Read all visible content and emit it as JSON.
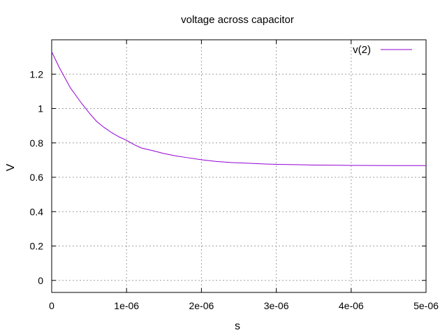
{
  "chart_data": {
    "type": "line",
    "title": "voltage across capacitor",
    "xlabel": "s",
    "ylabel": "V",
    "xlim": [
      0,
      5e-06
    ],
    "ylim": [
      -0.07,
      1.4
    ],
    "grid": true,
    "legend_position": "top-right",
    "x_ticks": [
      0,
      1e-06,
      2e-06,
      3e-06,
      4e-06,
      5e-06
    ],
    "x_tick_labels": [
      "0",
      "1e-06",
      "2e-06",
      "3e-06",
      "4e-06",
      "5e-06"
    ],
    "y_ticks": [
      0,
      0.2,
      0.4,
      0.6,
      0.8,
      1.0,
      1.2
    ],
    "y_tick_labels": [
      "0",
      "0.2",
      "0.4",
      "0.6",
      "0.8",
      "1",
      "1.2"
    ],
    "series": [
      {
        "name": "v(2)",
        "color": "#9400d3",
        "x": [
          0,
          1e-07,
          2e-07,
          2.5e-07,
          4e-07,
          5e-07,
          6e-07,
          7e-07,
          8e-07,
          9e-07,
          1e-06,
          1.1e-06,
          1.2e-06,
          1.35e-06,
          1.5e-06,
          1.65e-06,
          1.8e-06,
          2e-06,
          2.2e-06,
          2.4e-06,
          2.6e-06,
          2.8e-06,
          3e-06,
          3.3e-06,
          3.5e-06,
          3.8e-06,
          4e-06,
          4.5e-06,
          5e-06
        ],
        "y": [
          1.33,
          1.24,
          1.16,
          1.12,
          1.03,
          0.975,
          0.925,
          0.89,
          0.86,
          0.835,
          0.815,
          0.79,
          0.77,
          0.755,
          0.738,
          0.725,
          0.715,
          0.702,
          0.692,
          0.686,
          0.682,
          0.678,
          0.675,
          0.673,
          0.671,
          0.67,
          0.669,
          0.668,
          0.668
        ]
      }
    ]
  }
}
